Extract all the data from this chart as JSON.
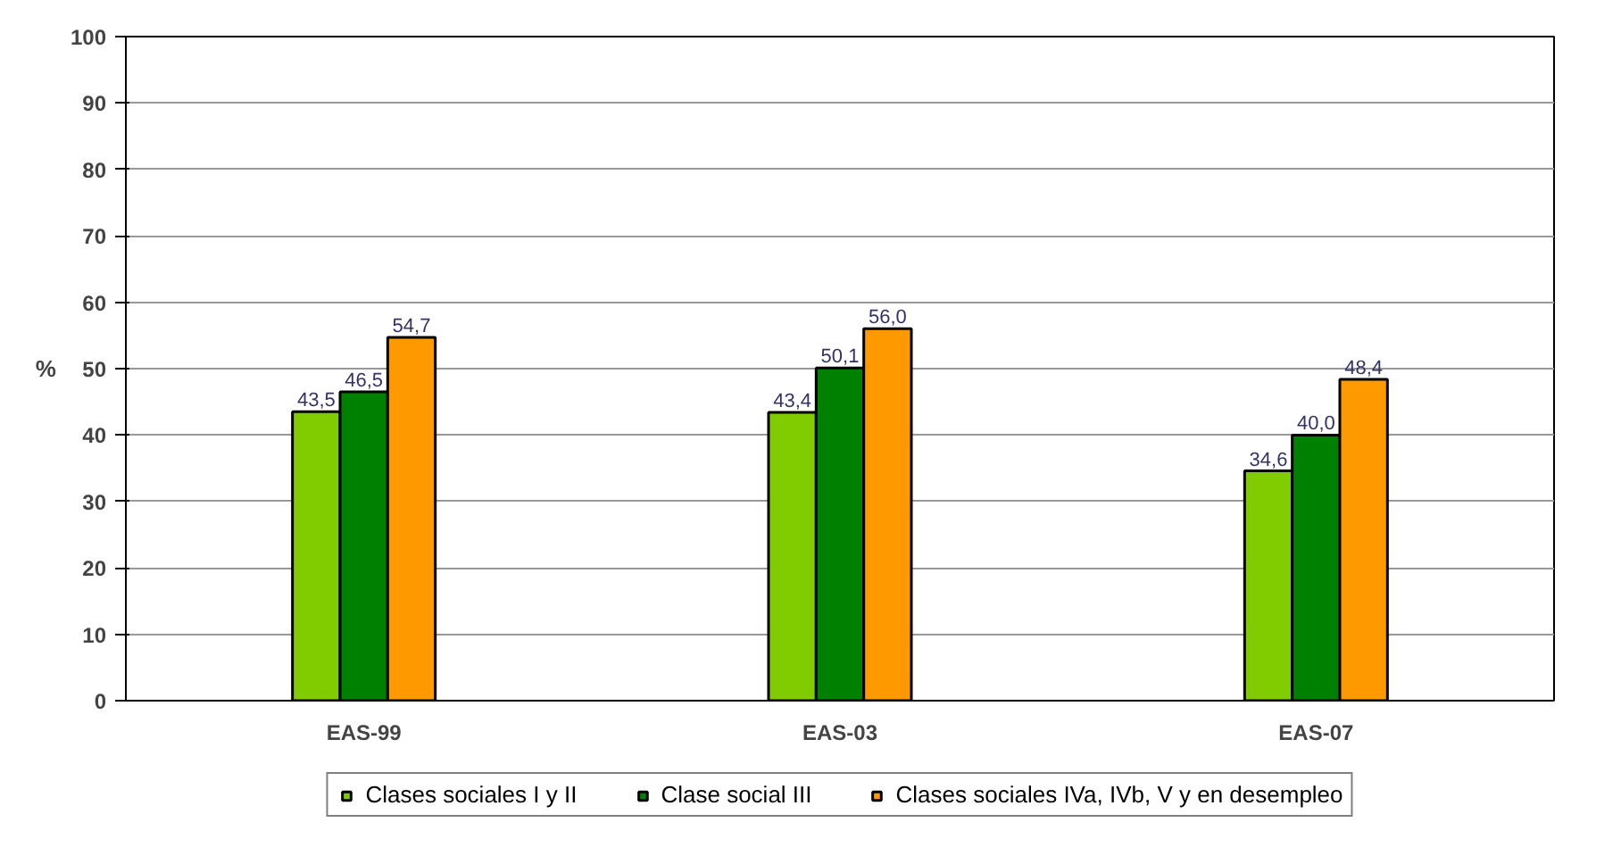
{
  "chart_data": {
    "type": "bar",
    "ylabel": "%",
    "categories": [
      "EAS-99",
      "EAS-03",
      "EAS-07"
    ],
    "series": [
      {
        "name": "Clases sociales I y II",
        "color": "#80cc00",
        "values": [
          43.5,
          43.4,
          34.6
        ],
        "value_labels": [
          "43,5",
          "43,4",
          "34,6"
        ]
      },
      {
        "name": "Clase social III",
        "color": "#008000",
        "values": [
          46.5,
          50.1,
          40.0
        ],
        "value_labels": [
          "46,5",
          "50,1",
          "40,0"
        ]
      },
      {
        "name": "Clases sociales IVa, IVb, V y en desempleo",
        "color": "#ff9900",
        "values": [
          54.7,
          56.0,
          48.4
        ],
        "value_labels": [
          "54,7",
          "56,0",
          "48,4"
        ]
      }
    ],
    "ylim": [
      0,
      100
    ],
    "yticks": [
      0,
      10,
      20,
      30,
      40,
      50,
      60,
      70,
      80,
      90,
      100
    ],
    "grid": "y",
    "legend": "bottom"
  }
}
